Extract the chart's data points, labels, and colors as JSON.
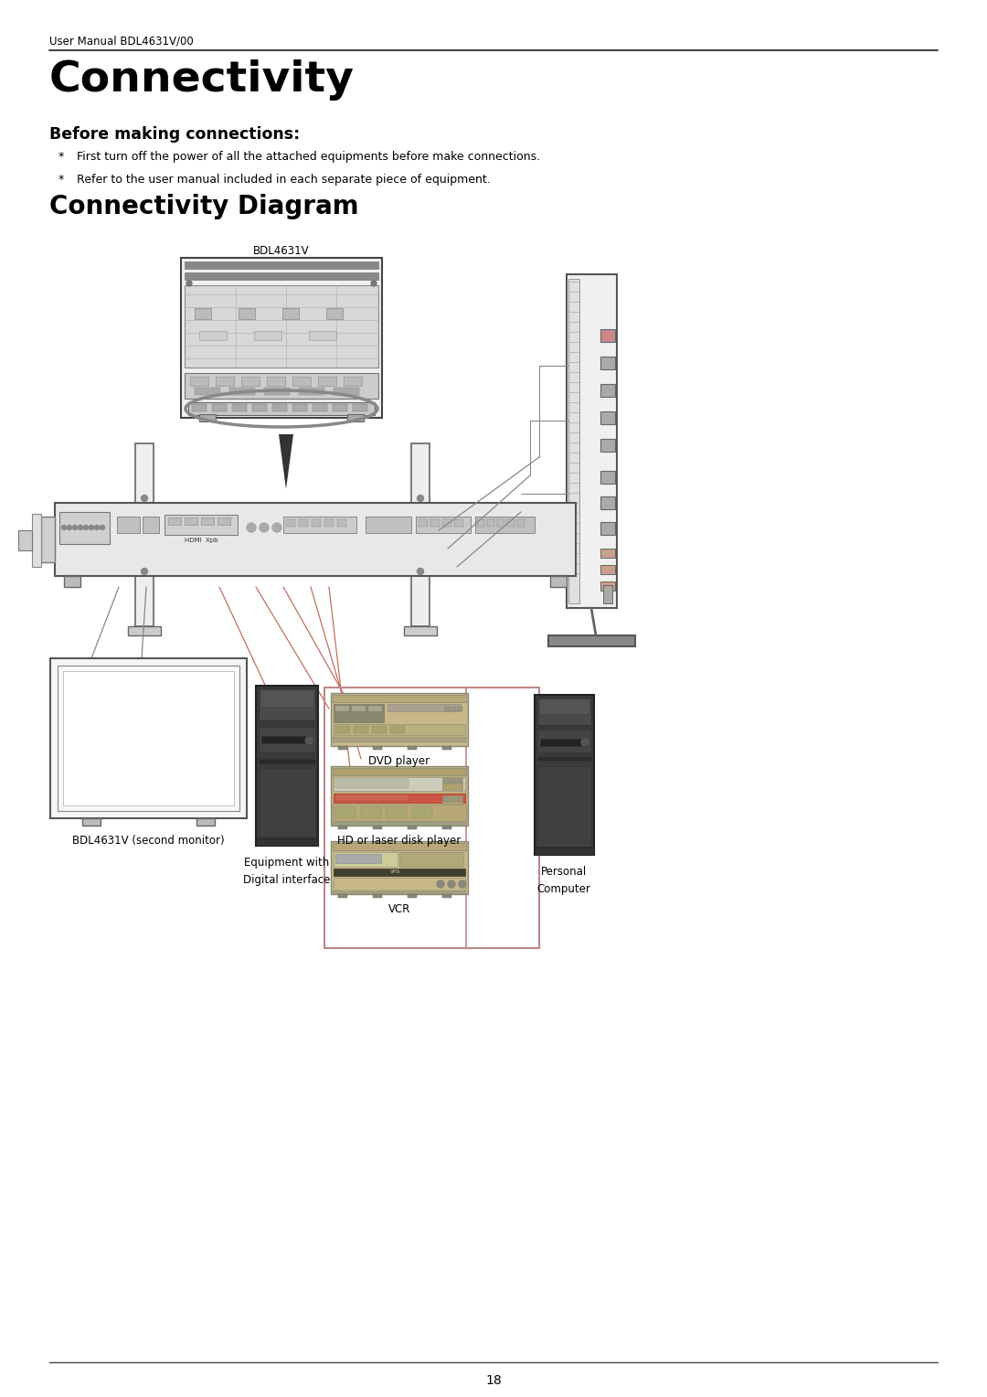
{
  "page_header": "User Manual BDL4631V/00",
  "title": "Connectivity",
  "section1_title": "Before making connections:",
  "bullet1": "First turn off the power of all the attached equipments before make connections.",
  "bullet2": "Refer to the user manual included in each separate piece of equipment.",
  "section2_title": "Connectivity Diagram",
  "bdl_label": "BDL4631V",
  "second_monitor_label": "BDL4631V (second monitor)",
  "digital_label": "Equipment with\nDigital interface",
  "dvd_label": "DVD player",
  "hd_label": "HD or laser disk player",
  "vcr_label": "VCR",
  "pc_label": "Personal\nComputer",
  "page_number": "18",
  "bg_color": "#ffffff",
  "text_color": "#000000",
  "line_color": "#555555",
  "accent_color": "#c07060"
}
